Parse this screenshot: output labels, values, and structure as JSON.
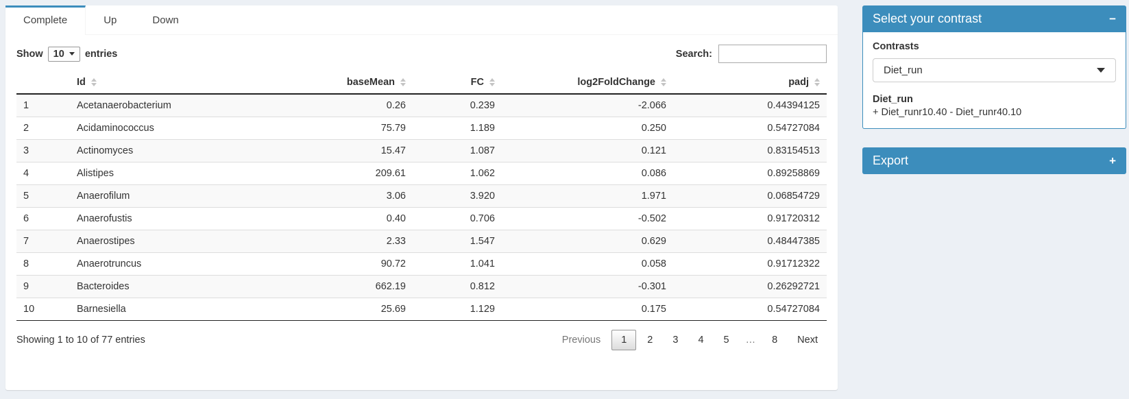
{
  "colors": {
    "accent": "#3c8dbc",
    "page_bg": "#ecf0f5",
    "stripe": "#f9f9f9"
  },
  "tabs": [
    {
      "label": "Complete",
      "active": true
    },
    {
      "label": "Up",
      "active": false
    },
    {
      "label": "Down",
      "active": false
    }
  ],
  "length_control": {
    "prefix": "Show",
    "value": "10",
    "suffix": "entries"
  },
  "search": {
    "label": "Search:",
    "value": "",
    "placeholder": ""
  },
  "table": {
    "columns": [
      {
        "label": "",
        "align": "left",
        "sortable": false
      },
      {
        "label": "Id",
        "align": "left",
        "sortable": true
      },
      {
        "label": "baseMean",
        "align": "right",
        "sortable": true
      },
      {
        "label": "FC",
        "align": "right",
        "sortable": true
      },
      {
        "label": "log2FoldChange",
        "align": "right",
        "sortable": true
      },
      {
        "label": "padj",
        "align": "right",
        "sortable": true
      }
    ],
    "rows": [
      [
        "1",
        "Acetanaerobacterium",
        "0.26",
        "0.239",
        "-2.066",
        "0.44394125"
      ],
      [
        "2",
        "Acidaminococcus",
        "75.79",
        "1.189",
        "0.250",
        "0.54727084"
      ],
      [
        "3",
        "Actinomyces",
        "15.47",
        "1.087",
        "0.121",
        "0.83154513"
      ],
      [
        "4",
        "Alistipes",
        "209.61",
        "1.062",
        "0.086",
        "0.89258869"
      ],
      [
        "5",
        "Anaerofilum",
        "3.06",
        "3.920",
        "1.971",
        "0.06854729"
      ],
      [
        "6",
        "Anaerofustis",
        "0.40",
        "0.706",
        "-0.502",
        "0.91720312"
      ],
      [
        "7",
        "Anaerostipes",
        "2.33",
        "1.547",
        "0.629",
        "0.48447385"
      ],
      [
        "8",
        "Anaerotruncus",
        "90.72",
        "1.041",
        "0.058",
        "0.91712322"
      ],
      [
        "9",
        "Bacteroides",
        "662.19",
        "0.812",
        "-0.301",
        "0.26292721"
      ],
      [
        "10",
        "Barnesiella",
        "25.69",
        "1.129",
        "0.175",
        "0.54727084"
      ]
    ]
  },
  "info_text": "Showing 1 to 10 of 77 entries",
  "pagination": {
    "previous": "Previous",
    "pages": [
      "1",
      "2",
      "3",
      "4",
      "5",
      "…",
      "8"
    ],
    "current": "1",
    "next": "Next"
  },
  "contrast_panel": {
    "title": "Select your contrast",
    "collapse_icon": "−",
    "field_label": "Contrasts",
    "selected_contrast": "Diet_run",
    "contrast_name": "Diet_run",
    "contrast_formula": "+ Diet_runr10.40 - Diet_runr40.10"
  },
  "export_panel": {
    "title": "Export",
    "expand_icon": "+"
  }
}
